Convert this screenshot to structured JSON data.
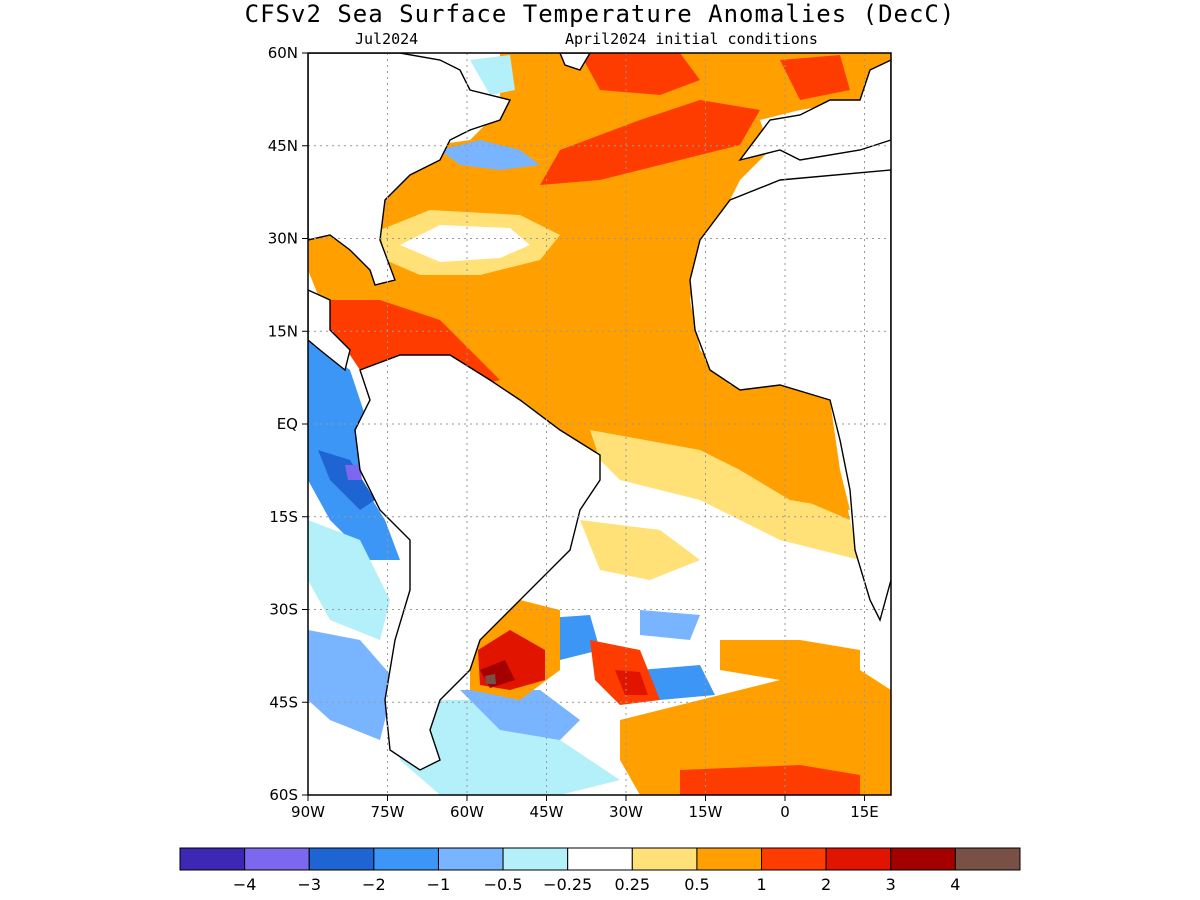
{
  "title": "CFSv2 Sea Surface Temperature Anomalies (DecC)",
  "subtitle_left": "Jul2024",
  "subtitle_right": "April2024 initial conditions",
  "map": {
    "lon_range": [
      -90,
      20
    ],
    "lat_range": [
      -60,
      60
    ],
    "lat_ticks": [
      {
        "value": 60,
        "label": "60N"
      },
      {
        "value": 45,
        "label": "45N"
      },
      {
        "value": 30,
        "label": "30N"
      },
      {
        "value": 15,
        "label": "15N"
      },
      {
        "value": 0,
        "label": "EQ"
      },
      {
        "value": -15,
        "label": "15S"
      },
      {
        "value": -30,
        "label": "30S"
      },
      {
        "value": -45,
        "label": "45S"
      },
      {
        "value": -60,
        "label": "60S"
      }
    ],
    "lon_ticks": [
      {
        "value": -90,
        "label": "90W"
      },
      {
        "value": -75,
        "label": "75W"
      },
      {
        "value": -60,
        "label": "60W"
      },
      {
        "value": -45,
        "label": "45W"
      },
      {
        "value": -30,
        "label": "30W"
      },
      {
        "value": -15,
        "label": "15W"
      },
      {
        "value": 0,
        "label": "0"
      },
      {
        "value": 15,
        "label": "15E"
      }
    ],
    "grid": true
  },
  "colorbar": {
    "colors": [
      "#3c28b4",
      "#7b68ee",
      "#1e64d2",
      "#3c96f5",
      "#78b4ff",
      "#b4f0fa",
      "#ffffff",
      "#ffe178",
      "#ffa000",
      "#ff3c00",
      "#e11400",
      "#a50000",
      "#785046"
    ],
    "labels": [
      "−4",
      "−3",
      "−2",
      "−1",
      "−0.5",
      "−0.25",
      "0.25",
      "0.5",
      "1",
      "2",
      "3",
      "4"
    ]
  }
}
